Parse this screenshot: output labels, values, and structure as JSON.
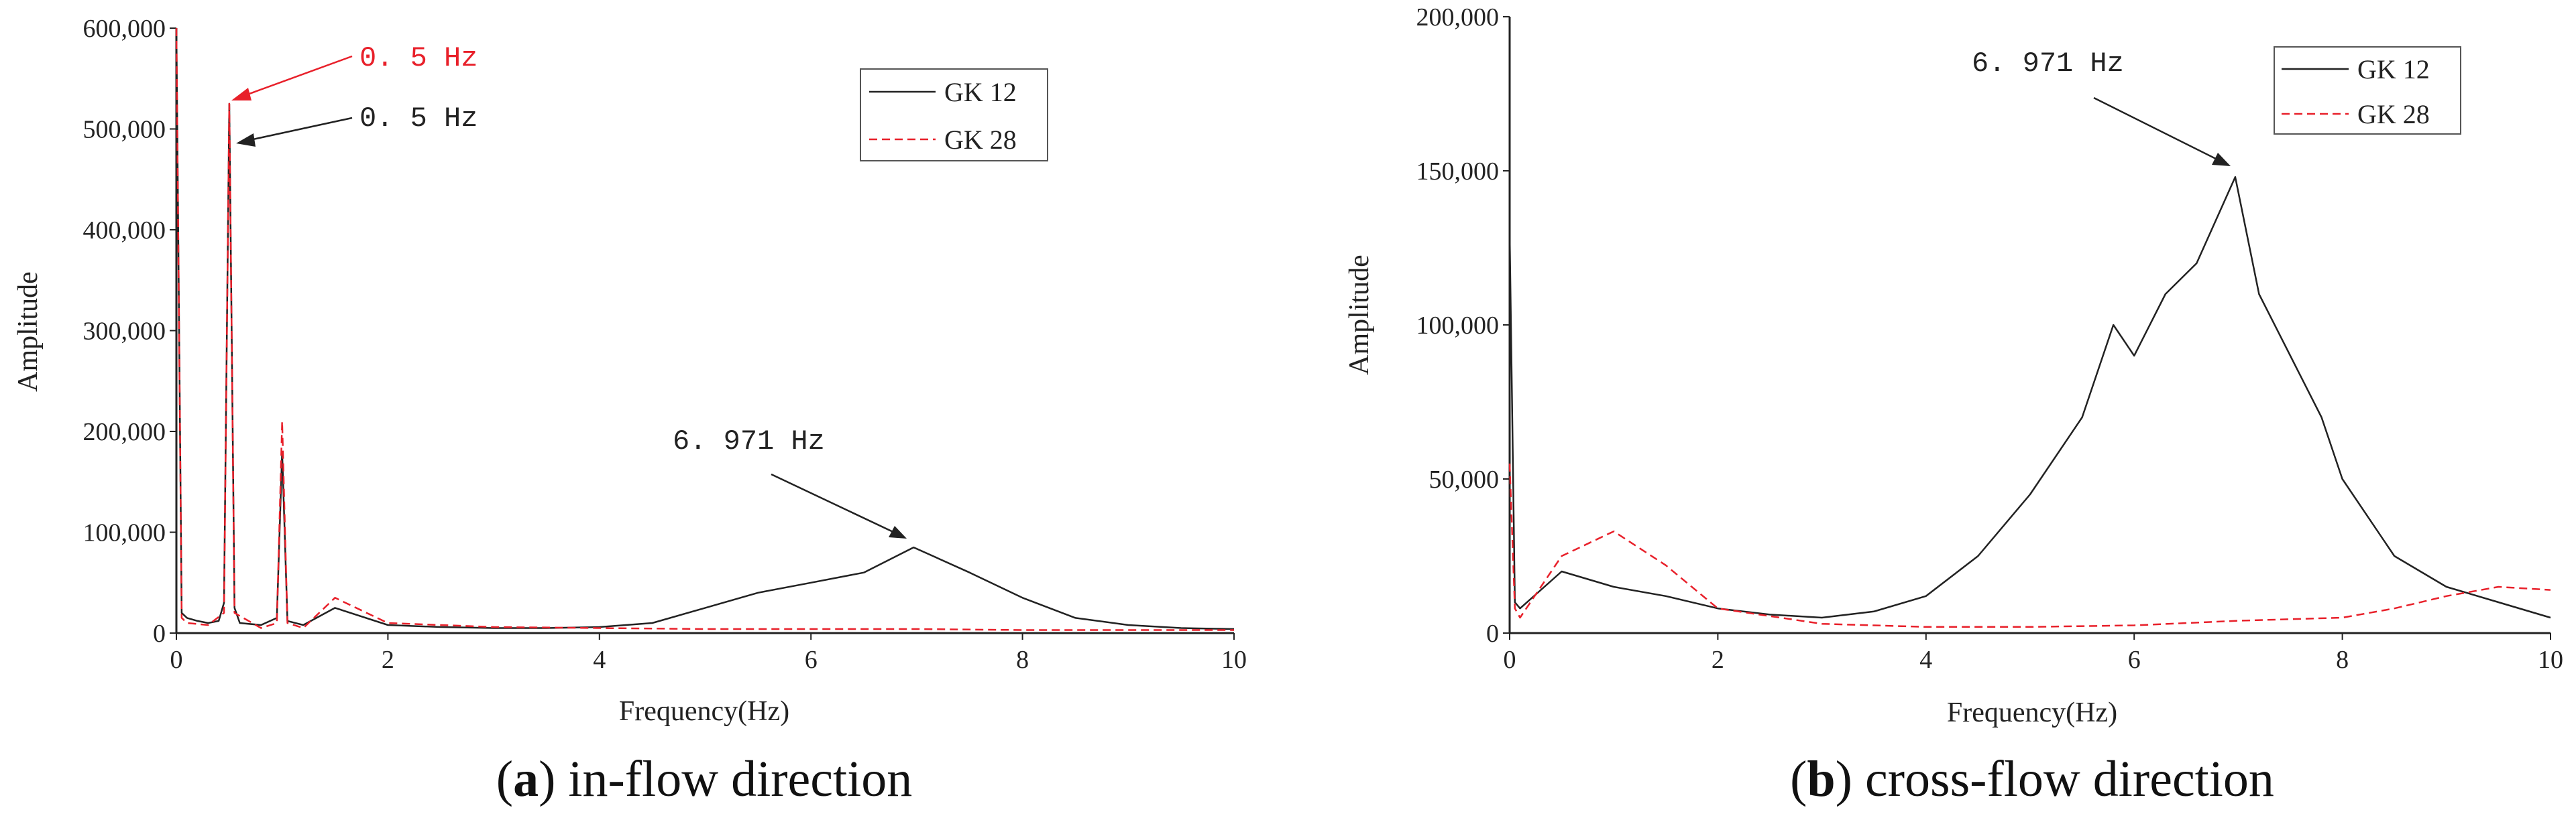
{
  "figure": {
    "panels": [
      {
        "letter": "a",
        "caption": " in-flow direction",
        "ylabel": "Amplitude",
        "xlabel": "Frequency(Hz)",
        "yticks": [
          "0",
          "100,000",
          "200,000",
          "300,000",
          "400,000",
          "500,000",
          "600,000"
        ],
        "xticks": [
          "0",
          "2",
          "4",
          "6",
          "8",
          "10"
        ],
        "legend": [
          "GK 12",
          "GK 28"
        ],
        "annotations": [
          {
            "text": "0. 5 Hz",
            "color": "#e8202a"
          },
          {
            "text": "0. 5 Hz",
            "color": "#222222"
          },
          {
            "text": "6. 971 Hz",
            "color": "#222222"
          }
        ]
      },
      {
        "letter": "b",
        "caption": " cross-flow direction",
        "ylabel": "Amplitude",
        "xlabel": "Frequency(Hz)",
        "yticks": [
          "0",
          "50,000",
          "100,000",
          "150,000",
          "200,000"
        ],
        "xticks": [
          "0",
          "2",
          "4",
          "6",
          "8",
          "10"
        ],
        "legend": [
          "GK 12",
          "GK 28"
        ],
        "annotations": [
          {
            "text": "6. 971 Hz",
            "color": "#222222"
          }
        ]
      }
    ]
  },
  "chart_data": [
    {
      "type": "line",
      "title": "(a) in-flow direction",
      "xlabel": "Frequency(Hz)",
      "ylabel": "Amplitude",
      "xlim": [
        0,
        10
      ],
      "ylim": [
        0,
        600000
      ],
      "grid": false,
      "legend_position": "top-right",
      "series": [
        {
          "name": "GK 12",
          "color": "#222222",
          "dash": "solid",
          "x": [
            0,
            0.05,
            0.1,
            0.2,
            0.3,
            0.4,
            0.45,
            0.5,
            0.55,
            0.6,
            0.8,
            0.95,
            1.0,
            1.05,
            1.2,
            1.5,
            2,
            2.5,
            3,
            3.5,
            4,
            4.5,
            5,
            5.5,
            6,
            6.5,
            6.971,
            7.5,
            8,
            8.5,
            9,
            9.5,
            10
          ],
          "y": [
            600000,
            20000,
            15000,
            12000,
            10000,
            12000,
            30000,
            525000,
            25000,
            10000,
            8000,
            15000,
            180000,
            12000,
            8000,
            25000,
            8000,
            6000,
            5000,
            5000,
            6000,
            10000,
            25000,
            40000,
            50000,
            60000,
            85000,
            60000,
            35000,
            15000,
            8000,
            5000,
            4000
          ]
        },
        {
          "name": "GK 28",
          "color": "#e8202a",
          "dash": "dashed",
          "x": [
            0,
            0.05,
            0.1,
            0.3,
            0.45,
            0.5,
            0.55,
            0.8,
            0.95,
            1.0,
            1.05,
            1.2,
            1.5,
            2,
            3,
            4,
            5,
            6,
            7,
            8,
            9,
            10
          ],
          "y": [
            600000,
            15000,
            10000,
            8000,
            20000,
            525000,
            20000,
            5000,
            10000,
            210000,
            10000,
            5000,
            35000,
            10000,
            6000,
            5000,
            4000,
            4000,
            4000,
            3000,
            3000,
            3000
          ]
        }
      ],
      "annotations": [
        {
          "text": "0. 5 Hz",
          "color": "#e8202a",
          "x": 0.55,
          "y": 520000
        },
        {
          "text": "0. 5 Hz",
          "color": "#222222",
          "x": 0.55,
          "y": 480000
        },
        {
          "text": "6. 971 Hz",
          "color": "#222222",
          "x": 6.971,
          "y": 87000
        }
      ]
    },
    {
      "type": "line",
      "title": "(b) cross-flow direction",
      "xlabel": "Frequency(Hz)",
      "ylabel": "Amplitude",
      "xlim": [
        0,
        10
      ],
      "ylim": [
        0,
        200000
      ],
      "grid": false,
      "legend_position": "top-right",
      "series": [
        {
          "name": "GK 12",
          "color": "#222222",
          "dash": "solid",
          "x": [
            0,
            0.05,
            0.1,
            0.5,
            1,
            1.5,
            2,
            2.5,
            3,
            3.5,
            4,
            4.5,
            5,
            5.5,
            5.8,
            6,
            6.3,
            6.6,
            6.971,
            7.2,
            7.5,
            7.8,
            8,
            8.5,
            9,
            9.5,
            10
          ],
          "y": [
            130000,
            10000,
            8000,
            20000,
            15000,
            12000,
            8000,
            6000,
            5000,
            7000,
            12000,
            25000,
            45000,
            70000,
            100000,
            90000,
            110000,
            120000,
            148000,
            110000,
            90000,
            70000,
            50000,
            25000,
            15000,
            10000,
            5000
          ]
        },
        {
          "name": "GK 28",
          "color": "#e8202a",
          "dash": "dashed",
          "x": [
            0,
            0.05,
            0.1,
            0.5,
            1,
            1.5,
            2,
            3,
            4,
            5,
            6,
            7,
            8,
            8.5,
            9,
            9.5,
            10
          ],
          "y": [
            55000,
            8000,
            5000,
            25000,
            33000,
            22000,
            8000,
            3000,
            2000,
            2000,
            2500,
            4000,
            5000,
            8000,
            12000,
            15000,
            14000
          ]
        }
      ],
      "annotations": [
        {
          "text": "6. 971 Hz",
          "color": "#222222",
          "x": 6.971,
          "y": 148000
        }
      ]
    }
  ]
}
